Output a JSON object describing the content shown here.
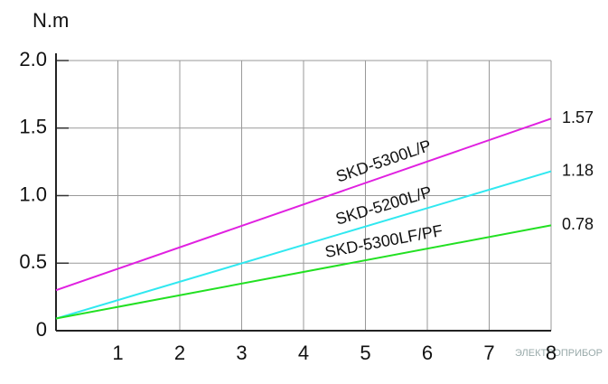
{
  "chart_data": {
    "type": "line",
    "y_label": "N.m",
    "watermark": "ЭЛЕКТРОПРИБОР",
    "x": [
      0,
      8
    ],
    "series": [
      {
        "name": "SKD-5300L/P",
        "color": "#e020e0",
        "values": [
          0.3,
          1.57
        ]
      },
      {
        "name": "SKD-5200L/P",
        "color": "#30e8f0",
        "values": [
          0.09,
          1.18
        ]
      },
      {
        "name": "SKD-5300LF/PF",
        "color": "#22e022",
        "values": [
          0.09,
          0.78
        ]
      }
    ],
    "xlim": [
      0,
      8
    ],
    "xticks": [
      1,
      2,
      3,
      4,
      5,
      6,
      7,
      8
    ],
    "ylim": [
      0,
      2
    ],
    "yticks": [
      0,
      0.5,
      {
        "value": 1,
        "label": "1.0"
      },
      1.5,
      {
        "value": 2,
        "label": "2.0"
      }
    ],
    "grid": true
  }
}
